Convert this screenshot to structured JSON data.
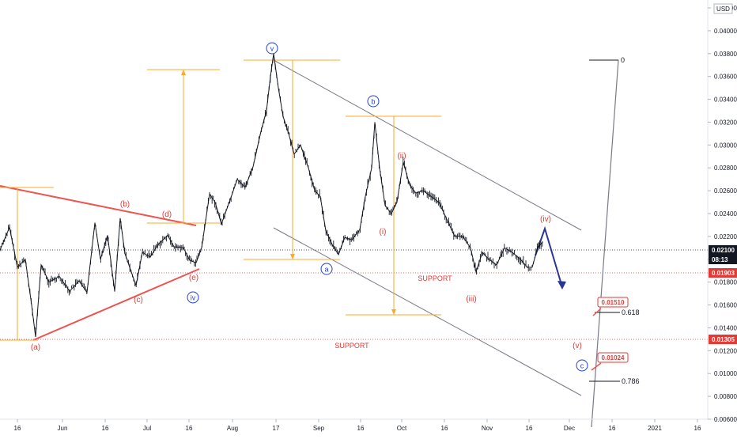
{
  "chart_data": {
    "type": "line",
    "currency": "USD",
    "y_axis": {
      "ticks": [
        "0.04200",
        "0.04000",
        "0.03800",
        "0.03600",
        "0.03400",
        "0.03200",
        "0.03000",
        "0.02800",
        "0.02600",
        "0.02400",
        "0.02200",
        "0.02000",
        "0.01800",
        "0.01600",
        "0.01400",
        "0.01200",
        "0.01000",
        "0.00800",
        "0.00600"
      ],
      "range": [
        0.006,
        0.0434
      ]
    },
    "x_axis": {
      "ticks": [
        "16",
        "Jun",
        "16",
        "Jul",
        "16",
        "Aug",
        "17",
        "Sep",
        "16",
        "Oct",
        "16",
        "Nov",
        "16",
        "Dec",
        "16",
        "2021",
        "16"
      ]
    },
    "price_badges": [
      {
        "value": "0.02100",
        "color": "#131722",
        "y": 0.021
      },
      {
        "value": "08:13",
        "color": "#131722",
        "y": 0.02055
      },
      {
        "value": "0.01903",
        "color": "#e53935",
        "y": 0.01903
      },
      {
        "value": "0.01305",
        "color": "#e53935",
        "y": 0.01305
      }
    ],
    "wave_labels_red": [
      {
        "text": "(a)",
        "y": 0.0124
      },
      {
        "text": "(b)",
        "y": 0.0251
      },
      {
        "text": "(c)",
        "y": 0.0173
      },
      {
        "text": "(d)",
        "y": 0.0242
      },
      {
        "text": "(e)",
        "y": 0.0189
      },
      {
        "text": "(i)",
        "y": 0.0229
      },
      {
        "text": "(ii)",
        "y": 0.0287
      },
      {
        "text": "(iii)",
        "y": 0.0175
      },
      {
        "text": "(iv)",
        "y": 0.0239
      },
      {
        "text": "(v)",
        "y": 0.0122
      }
    ],
    "wave_labels_blue": [
      {
        "text": "iv",
        "y": 0.0174
      },
      {
        "text": "v",
        "y": 0.0391
      },
      {
        "text": "a",
        "y": 0.0191
      },
      {
        "text": "b",
        "y": 0.0343
      },
      {
        "text": "c",
        "y": 0.0101
      }
    ],
    "support_labels": [
      {
        "text": "SUPPORT",
        "y": 0.0191
      },
      {
        "text": "SUPPORT",
        "y": 0.0125
      }
    ],
    "fib_levels": [
      {
        "ratio": "0.618",
        "price": "0.01510",
        "y": 0.0154
      },
      {
        "ratio": "0.786",
        "price": "0.01024",
        "y": 0.0092
      },
      {
        "ratio": "0",
        "y": 0.0379
      }
    ],
    "price_path": [
      [
        0,
        0.0208
      ],
      [
        12,
        0.0228
      ],
      [
        22,
        0.0193
      ],
      [
        32,
        0.02
      ],
      [
        40,
        0.016
      ],
      [
        45,
        0.0132
      ],
      [
        52,
        0.0195
      ],
      [
        62,
        0.018
      ],
      [
        75,
        0.0185
      ],
      [
        88,
        0.0172
      ],
      [
        100,
        0.0181
      ],
      [
        110,
        0.0171
      ],
      [
        120,
        0.0232
      ],
      [
        127,
        0.02
      ],
      [
        136,
        0.0221
      ],
      [
        145,
        0.0172
      ],
      [
        152,
        0.0236
      ],
      [
        158,
        0.0205
      ],
      [
        165,
        0.0191
      ],
      [
        172,
        0.0177
      ],
      [
        180,
        0.0206
      ],
      [
        190,
        0.0202
      ],
      [
        200,
        0.0213
      ],
      [
        212,
        0.0221
      ],
      [
        220,
        0.0211
      ],
      [
        232,
        0.021
      ],
      [
        240,
        0.0199
      ],
      [
        248,
        0.0197
      ],
      [
        255,
        0.021
      ],
      [
        265,
        0.0257
      ],
      [
        272,
        0.025
      ],
      [
        280,
        0.0231
      ],
      [
        290,
        0.025
      ],
      [
        300,
        0.027
      ],
      [
        310,
        0.0263
      ],
      [
        320,
        0.0281
      ],
      [
        330,
        0.0312
      ],
      [
        337,
        0.033
      ],
      [
        342,
        0.036
      ],
      [
        346,
        0.038
      ],
      [
        352,
        0.035
      ],
      [
        358,
        0.0325
      ],
      [
        365,
        0.031
      ],
      [
        372,
        0.0292
      ],
      [
        380,
        0.03
      ],
      [
        390,
        0.028
      ],
      [
        398,
        0.026
      ],
      [
        405,
        0.0255
      ],
      [
        412,
        0.0225
      ],
      [
        420,
        0.0213
      ],
      [
        428,
        0.0204
      ],
      [
        436,
        0.0219
      ],
      [
        445,
        0.0217
      ],
      [
        455,
        0.0226
      ],
      [
        462,
        0.0255
      ],
      [
        470,
        0.028
      ],
      [
        474,
        0.032
      ],
      [
        480,
        0.028
      ],
      [
        487,
        0.0247
      ],
      [
        495,
        0.024
      ],
      [
        502,
        0.025
      ],
      [
        510,
        0.0285
      ],
      [
        518,
        0.0265
      ],
      [
        526,
        0.0258
      ],
      [
        535,
        0.026
      ],
      [
        545,
        0.0255
      ],
      [
        555,
        0.025
      ],
      [
        565,
        0.0235
      ],
      [
        575,
        0.022
      ],
      [
        585,
        0.022
      ],
      [
        595,
        0.021
      ],
      [
        602,
        0.0189
      ],
      [
        610,
        0.0206
      ],
      [
        618,
        0.02
      ],
      [
        628,
        0.0195
      ],
      [
        638,
        0.021
      ],
      [
        648,
        0.0206
      ],
      [
        658,
        0.02
      ],
      [
        667,
        0.0193
      ],
      [
        673,
        0.0193
      ],
      [
        680,
        0.021
      ],
      [
        686,
        0.0215
      ]
    ]
  }
}
